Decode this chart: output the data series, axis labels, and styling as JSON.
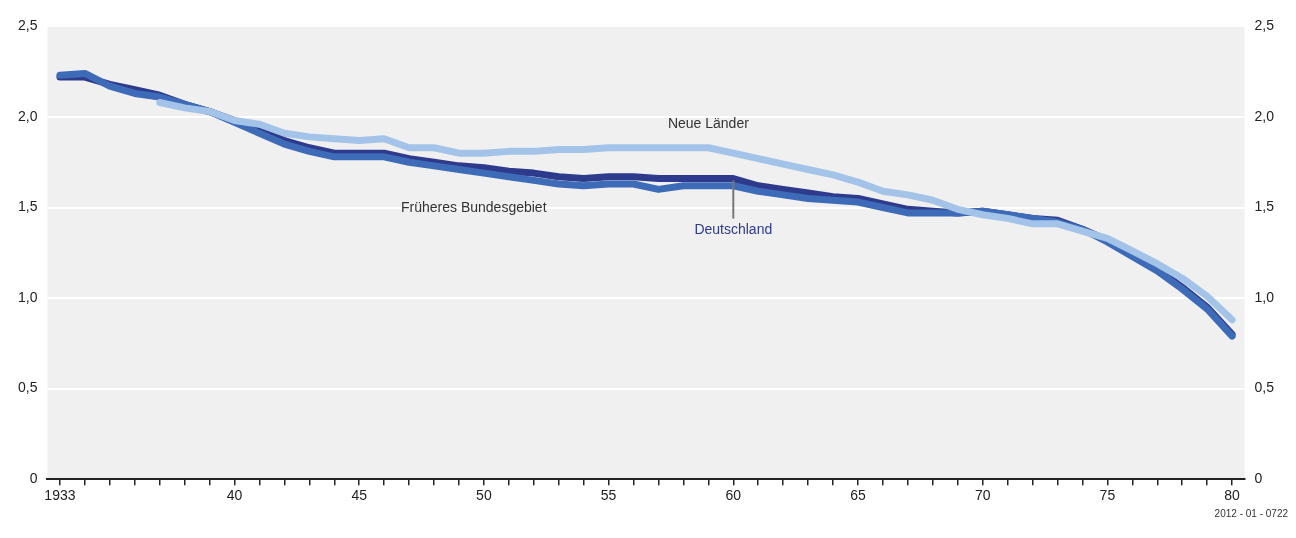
{
  "chart_data": {
    "type": "line",
    "x": [
      1933,
      1934,
      1935,
      1936,
      1937,
      1938,
      1939,
      1940,
      1941,
      1942,
      1943,
      1944,
      1945,
      1946,
      1947,
      1948,
      1949,
      1950,
      1951,
      1952,
      1953,
      1954,
      1955,
      1956,
      1957,
      1958,
      1959,
      1960,
      1961,
      1962,
      1963,
      1964,
      1965,
      1966,
      1967,
      1968,
      1969,
      1970,
      1971,
      1972,
      1973,
      1974,
      1975,
      1976,
      1977,
      1978,
      1979,
      1980
    ],
    "series": [
      {
        "name": "Neue Länder",
        "color": "#a3c4e8",
        "values": [
          null,
          null,
          null,
          null,
          2.08,
          2.05,
          2.03,
          1.98,
          1.96,
          1.91,
          1.89,
          1.88,
          1.87,
          1.88,
          1.83,
          1.83,
          1.8,
          1.8,
          1.81,
          1.81,
          1.82,
          1.82,
          1.83,
          1.83,
          1.83,
          1.83,
          1.83,
          1.8,
          1.77,
          1.74,
          1.71,
          1.68,
          1.64,
          1.59,
          1.57,
          1.54,
          1.49,
          1.46,
          1.44,
          1.41,
          1.41,
          1.37,
          1.33,
          1.26,
          1.19,
          1.11,
          1.01,
          0.88
        ]
      },
      {
        "name": "Früheres Bundesgebiet",
        "color": "#3d6bb8",
        "values": [
          2.23,
          2.24,
          2.17,
          2.13,
          2.11,
          2.07,
          2.03,
          1.97,
          1.91,
          1.85,
          1.81,
          1.78,
          1.78,
          1.78,
          1.75,
          1.73,
          1.71,
          1.69,
          1.67,
          1.65,
          1.63,
          1.62,
          1.63,
          1.63,
          1.6,
          1.62,
          1.62,
          1.62,
          1.59,
          1.57,
          1.55,
          1.54,
          1.53,
          1.5,
          1.47,
          1.47,
          1.47,
          1.48,
          1.46,
          1.44,
          1.42,
          1.38,
          1.31,
          1.23,
          1.15,
          1.05,
          0.94,
          0.79
        ]
      },
      {
        "name": "Deutschland",
        "color": "#2e3a8c",
        "values": [
          2.22,
          2.22,
          2.18,
          2.15,
          2.12,
          2.07,
          2.03,
          1.98,
          1.93,
          1.87,
          1.83,
          1.8,
          1.8,
          1.8,
          1.77,
          1.75,
          1.73,
          1.72,
          1.7,
          1.69,
          1.67,
          1.66,
          1.67,
          1.67,
          1.66,
          1.66,
          1.66,
          1.66,
          1.62,
          1.6,
          1.58,
          1.56,
          1.55,
          1.52,
          1.49,
          1.48,
          1.47,
          1.48,
          1.46,
          1.44,
          1.43,
          1.38,
          1.32,
          1.24,
          1.16,
          1.06,
          0.95,
          0.8
        ]
      }
    ],
    "xlim": [
      1932.5,
      1980.5
    ],
    "xticks": [
      1933,
      {
        "value": 1934,
        "label": null
      },
      {
        "value": 1935,
        "label": null
      },
      {
        "value": 1936,
        "label": null
      },
      {
        "value": 1937,
        "label": null
      },
      {
        "value": 1938,
        "label": null
      },
      {
        "value": 1939,
        "label": null
      },
      {
        "value": 1940,
        "label": "40"
      },
      {
        "value": 1941,
        "label": null
      },
      {
        "value": 1942,
        "label": null
      },
      {
        "value": 1943,
        "label": null
      },
      {
        "value": 1944,
        "label": null
      },
      {
        "value": 1945,
        "label": "45"
      },
      {
        "value": 1946,
        "label": null
      },
      {
        "value": 1947,
        "label": null
      },
      {
        "value": 1948,
        "label": null
      },
      {
        "value": 1949,
        "label": null
      },
      {
        "value": 1950,
        "label": "50"
      },
      {
        "value": 1951,
        "label": null
      },
      {
        "value": 1952,
        "label": null
      },
      {
        "value": 1953,
        "label": null
      },
      {
        "value": 1954,
        "label": null
      },
      {
        "value": 1955,
        "label": "55"
      },
      {
        "value": 1956,
        "label": null
      },
      {
        "value": 1957,
        "label": null
      },
      {
        "value": 1958,
        "label": null
      },
      {
        "value": 1959,
        "label": null
      },
      {
        "value": 1960,
        "label": "60"
      },
      {
        "value": 1961,
        "label": null
      },
      {
        "value": 1962,
        "label": null
      },
      {
        "value": 1963,
        "label": null
      },
      {
        "value": 1964,
        "label": null
      },
      {
        "value": 1965,
        "label": "65"
      },
      {
        "value": 1966,
        "label": null
      },
      {
        "value": 1967,
        "label": null
      },
      {
        "value": 1968,
        "label": null
      },
      {
        "value": 1969,
        "label": null
      },
      {
        "value": 1970,
        "label": "70"
      },
      {
        "value": 1971,
        "label": null
      },
      {
        "value": 1972,
        "label": null
      },
      {
        "value": 1973,
        "label": null
      },
      {
        "value": 1974,
        "label": null
      },
      {
        "value": 1975,
        "label": "75"
      },
      {
        "value": 1976,
        "label": null
      },
      {
        "value": 1977,
        "label": null
      },
      {
        "value": 1978,
        "label": null
      },
      {
        "value": 1979,
        "label": null
      },
      {
        "value": 1980,
        "label": "80"
      }
    ],
    "ylim": [
      0,
      2.5
    ],
    "yticks": [
      0,
      {
        "value": 0.5,
        "label": "0,5"
      },
      {
        "value": 1,
        "label": "1,0"
      },
      {
        "value": 1.5,
        "label": "1,5"
      },
      {
        "value": 2,
        "label": "2,0"
      },
      {
        "value": 2.5,
        "label": "2,5"
      }
    ],
    "y2lim": [
      0,
      2.5
    ],
    "y2ticks": [
      0,
      {
        "value": 0.5,
        "label": "0,5"
      },
      {
        "value": 1,
        "label": "1,0"
      },
      {
        "value": 1.5,
        "label": "1,5"
      },
      {
        "value": 2,
        "label": "2,0"
      },
      {
        "value": 2.5,
        "label": "2,5"
      }
    ],
    "grid": "y",
    "legend": false,
    "marker": "none",
    "line_style": "solid",
    "annotations": [
      "2012 - 01 - 0722"
    ]
  }
}
